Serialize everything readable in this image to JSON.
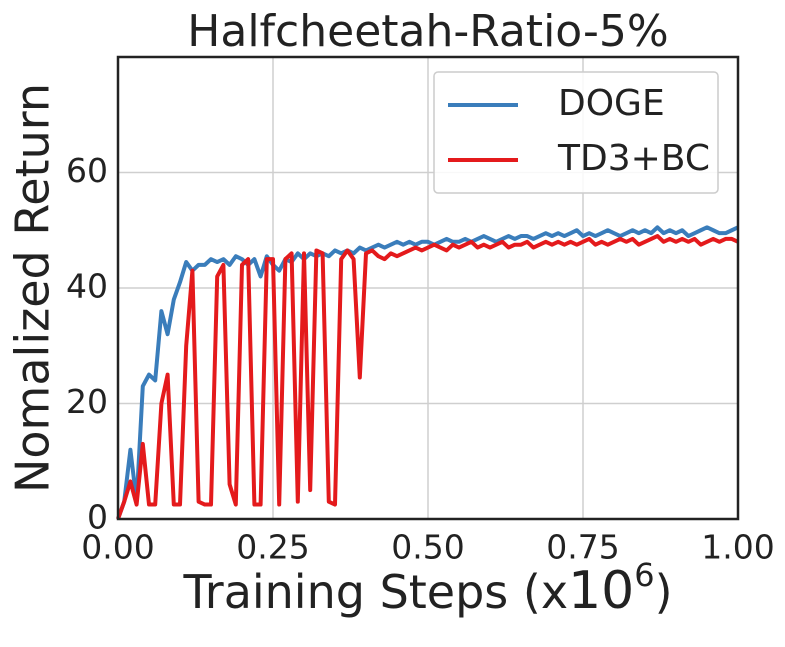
{
  "chart_data": {
    "type": "line",
    "title": "Halfcheetah-Ratio-5%",
    "ylabel": "Nomalized Return",
    "xlabel": {
      "text": "Training Steps (x",
      "base": "10",
      "exponent": "6",
      "close": ")"
    },
    "xlim": [
      0,
      1
    ],
    "ylim": [
      0,
      80
    ],
    "xticks": [
      {
        "value": 0,
        "label": "0.00"
      },
      {
        "value": 0.25,
        "label": "0.25"
      },
      {
        "value": 0.5,
        "label": "0.50"
      },
      {
        "value": 0.75,
        "label": "0.75"
      },
      {
        "value": 1,
        "label": "1.00"
      }
    ],
    "yticks": [
      0,
      20,
      40,
      60
    ],
    "grid": true,
    "legend": "upper right",
    "x": [
      0,
      0.01,
      0.02,
      0.03,
      0.04,
      0.05,
      0.06,
      0.07,
      0.08,
      0.09,
      0.1,
      0.11,
      0.12,
      0.13,
      0.14,
      0.15,
      0.16,
      0.17,
      0.18,
      0.19,
      0.2,
      0.21,
      0.22,
      0.23,
      0.24,
      0.25,
      0.26,
      0.27,
      0.28,
      0.29,
      0.3,
      0.31,
      0.32,
      0.33,
      0.34,
      0.35,
      0.36,
      0.37,
      0.38,
      0.39,
      0.4,
      0.41,
      0.42,
      0.43,
      0.44,
      0.45,
      0.46,
      0.47,
      0.48,
      0.49,
      0.5,
      0.51,
      0.52,
      0.53,
      0.54,
      0.55,
      0.56,
      0.57,
      0.58,
      0.59,
      0.6,
      0.61,
      0.62,
      0.63,
      0.64,
      0.65,
      0.66,
      0.67,
      0.68,
      0.69,
      0.7,
      0.71,
      0.72,
      0.73,
      0.74,
      0.75,
      0.76,
      0.77,
      0.78,
      0.79,
      0.8,
      0.81,
      0.82,
      0.83,
      0.84,
      0.85,
      0.86,
      0.87,
      0.88,
      0.89,
      0.9,
      0.91,
      0.92,
      0.93,
      0.94,
      0.95,
      0.96,
      0.97,
      0.98,
      0.99,
      1
    ],
    "series": [
      {
        "name": "DOGE",
        "color": "#3a7dbb",
        "values": [
          0,
          3,
          12,
          3,
          23,
          25,
          24,
          36,
          32,
          38,
          41,
          44.5,
          43,
          44,
          44,
          45,
          44.5,
          45,
          44,
          45.5,
          45,
          44,
          45,
          42,
          45.5,
          44,
          43,
          45,
          44.5,
          46,
          45,
          46,
          45.5,
          46,
          45.5,
          46.5,
          46,
          46.5,
          46,
          47,
          46.5,
          47,
          47.5,
          47,
          47.5,
          48,
          47.5,
          48,
          47.5,
          48,
          48,
          47.5,
          48,
          48.5,
          48,
          48,
          48.5,
          48,
          48.5,
          49,
          48.5,
          48,
          48.5,
          49,
          48.5,
          49,
          49,
          48.5,
          49,
          49.5,
          49,
          49.5,
          49,
          49.5,
          50,
          49,
          49.5,
          49,
          49.5,
          50,
          49.5,
          49,
          49.5,
          50,
          49.5,
          50,
          49.5,
          50.5,
          49.5,
          50,
          49.5,
          50,
          49,
          49.5,
          50,
          50.5,
          50,
          49.5,
          49.5,
          50,
          50.5
        ]
      },
      {
        "name": "TD3+BC",
        "color": "#e41a1c",
        "values": [
          0,
          3,
          6.5,
          2.5,
          13,
          2.5,
          2.5,
          20,
          25,
          2.5,
          2.5,
          30,
          43,
          3,
          2.5,
          2.5,
          42,
          44,
          6,
          2.5,
          44,
          45,
          2.5,
          2.5,
          45,
          45,
          2.5,
          45,
          46,
          3,
          46,
          5,
          46.5,
          46,
          3,
          2.5,
          45,
          46.5,
          45,
          24.5,
          46,
          46.5,
          45.5,
          45,
          46,
          45.5,
          46,
          46.5,
          47,
          46.5,
          47,
          47.5,
          47,
          46.5,
          47.5,
          47,
          47.5,
          48,
          47,
          47.5,
          47,
          47.5,
          48,
          47,
          47.5,
          47.5,
          48,
          47,
          47.5,
          48,
          47.5,
          48,
          47.5,
          48,
          47.5,
          48,
          48.5,
          47.5,
          48,
          47.5,
          48,
          48.5,
          48,
          48.5,
          47.5,
          48,
          48.5,
          49,
          48,
          48.5,
          48,
          48.5,
          48,
          48.5,
          47.5,
          48,
          48.5,
          48,
          48.5,
          48.5,
          48
        ]
      }
    ]
  }
}
